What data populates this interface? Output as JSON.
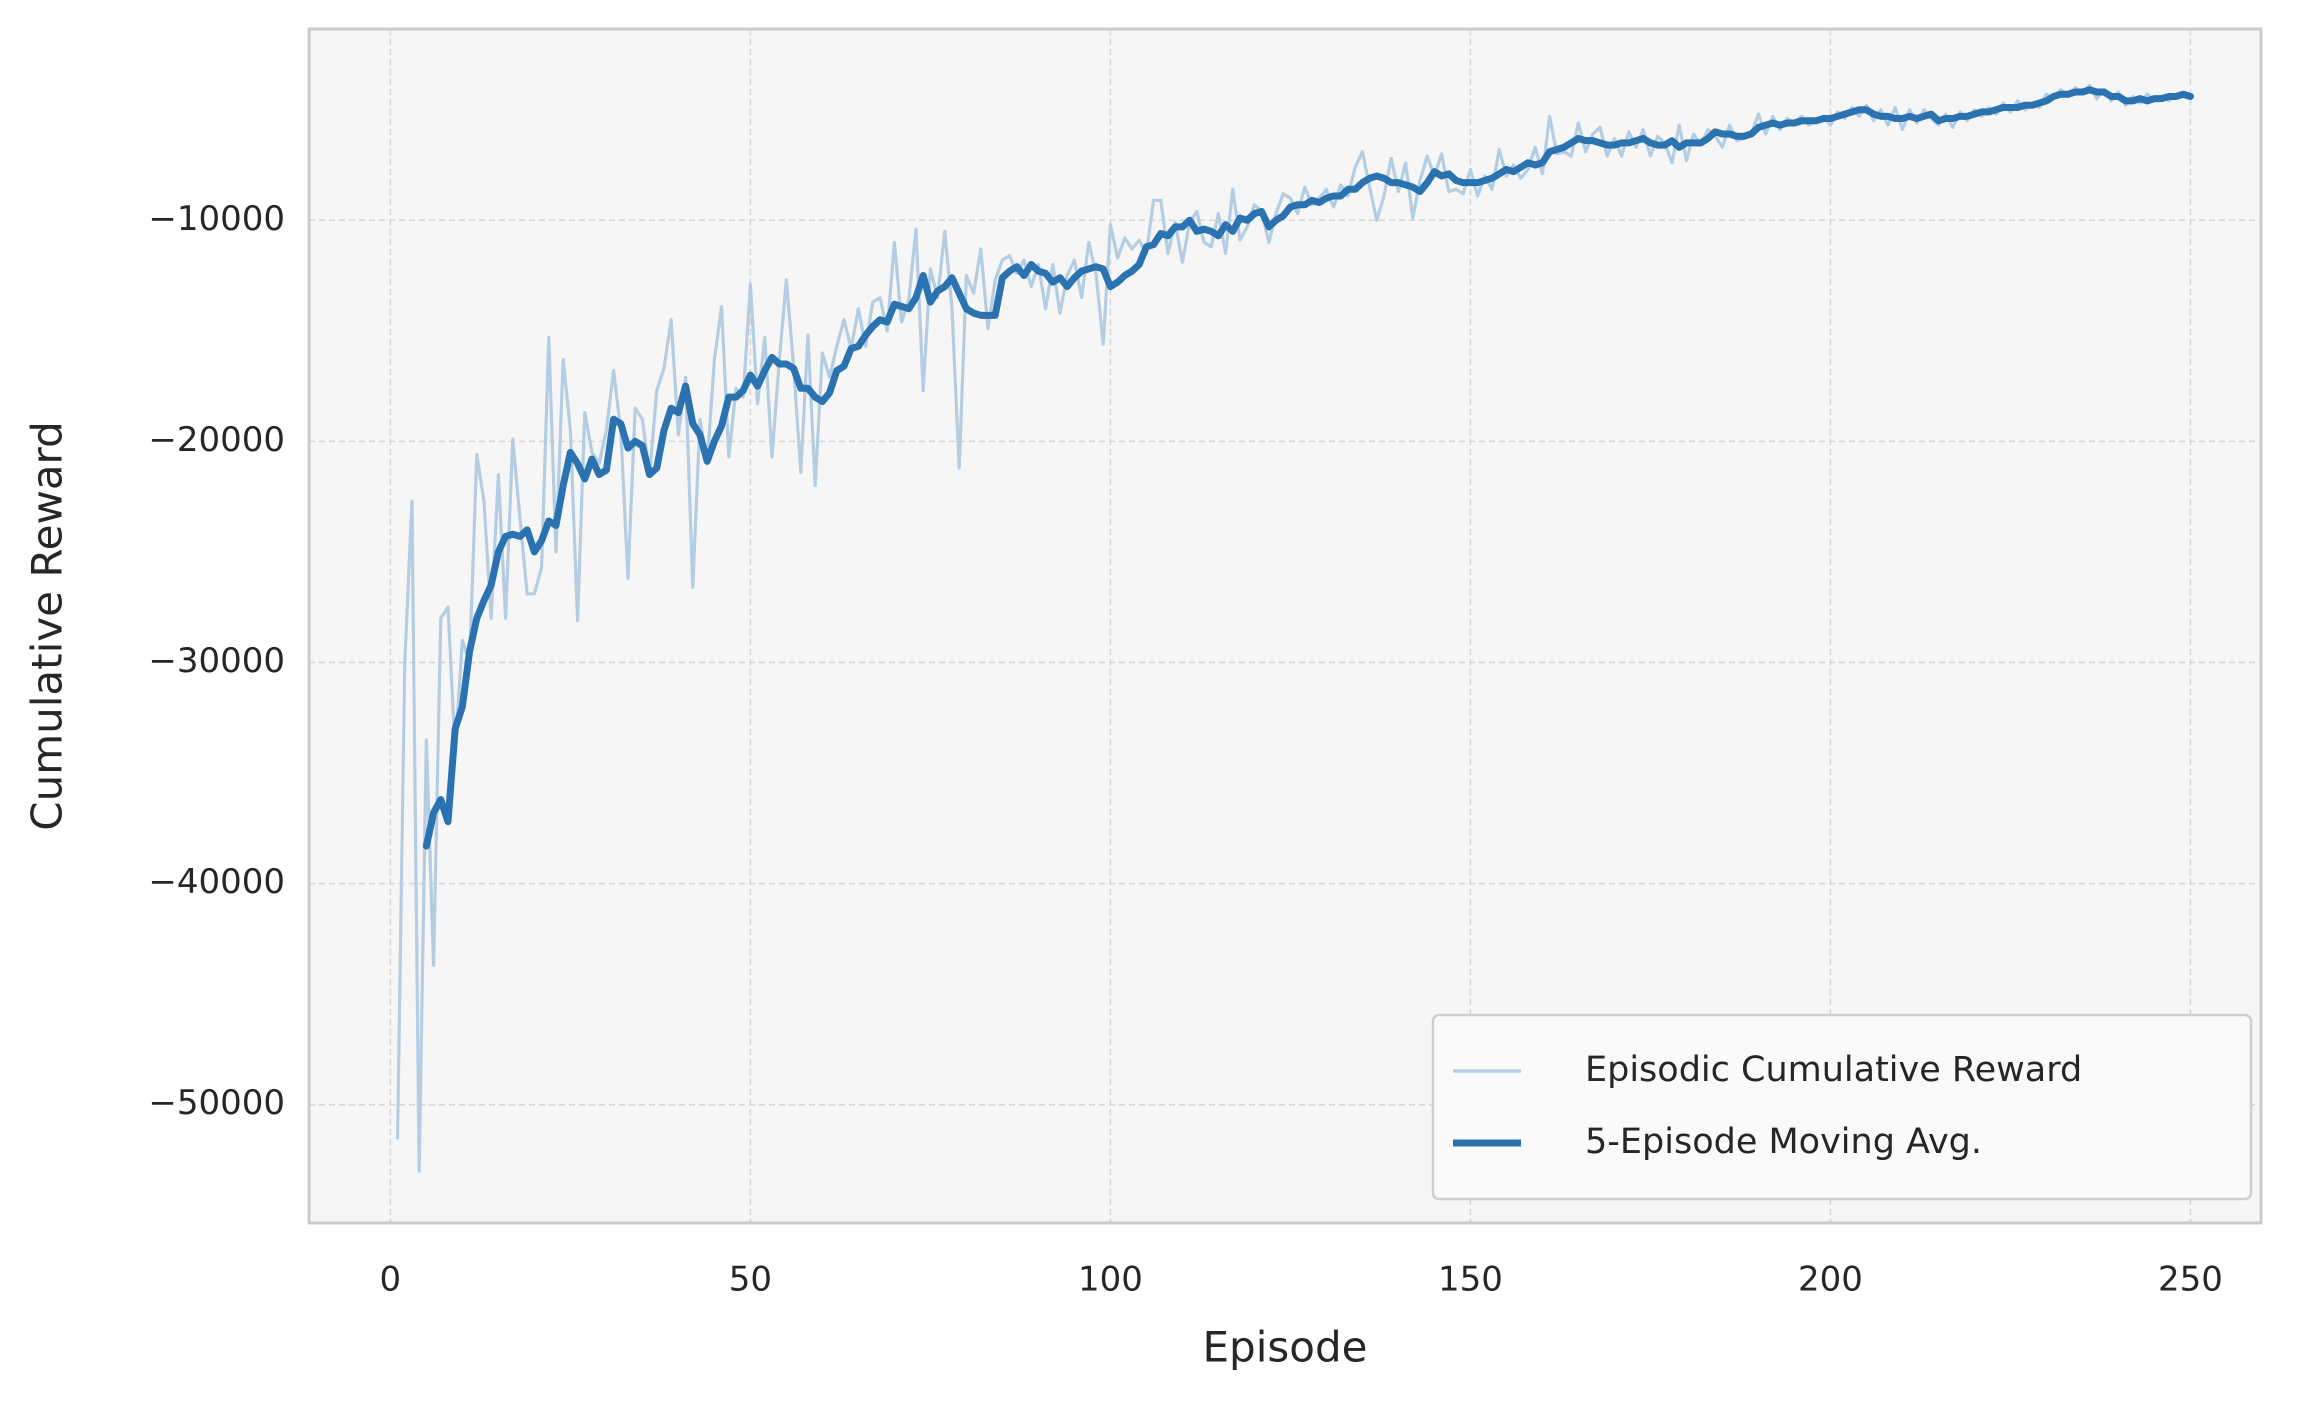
{
  "chart_data": {
    "type": "line",
    "xlabel": "Episode",
    "ylabel": "Cumulative Reward",
    "xlim": [
      -11.3,
      259.8
    ],
    "ylim": [
      -55350,
      -1350
    ],
    "xticks": [
      0,
      50,
      100,
      150,
      200,
      250
    ],
    "yticks": [
      {
        "value": -50000,
        "label": "−50000"
      },
      {
        "value": -40000,
        "label": "−40000"
      },
      {
        "value": -30000,
        "label": "−30000"
      },
      {
        "value": -20000,
        "label": "−20000"
      },
      {
        "value": -10000,
        "label": "−10000"
      }
    ],
    "grid": true,
    "legend": "lower right",
    "x": [
      1,
      2,
      3,
      4,
      5,
      6,
      7,
      8,
      9,
      10,
      11,
      12,
      13,
      14,
      15,
      16,
      17,
      18,
      19,
      20,
      21,
      22,
      23,
      24,
      25,
      26,
      27,
      28,
      29,
      30,
      31,
      32,
      33,
      34,
      35,
      36,
      37,
      38,
      39,
      40,
      41,
      42,
      43,
      44,
      45,
      46,
      47,
      48,
      49,
      50,
      51,
      52,
      53,
      54,
      55,
      56,
      57,
      58,
      59,
      60,
      61,
      62,
      63,
      64,
      65,
      66,
      67,
      68,
      69,
      70,
      71,
      72,
      73,
      74,
      75,
      76,
      77,
      78,
      79,
      80,
      81,
      82,
      83,
      84,
      85,
      86,
      87,
      88,
      89,
      90,
      91,
      92,
      93,
      94,
      95,
      96,
      97,
      98,
      99,
      100,
      101,
      102,
      103,
      104,
      105,
      106,
      107,
      108,
      109,
      110,
      111,
      112,
      113,
      114,
      115,
      116,
      117,
      118,
      119,
      120,
      121,
      122,
      123,
      124,
      125,
      126,
      127,
      128,
      129,
      130,
      131,
      132,
      133,
      134,
      135,
      136,
      137,
      138,
      139,
      140,
      141,
      142,
      143,
      144,
      145,
      146,
      147,
      148,
      149,
      150,
      151,
      152,
      153,
      154,
      155,
      156,
      157,
      158,
      159,
      160,
      161,
      162,
      163,
      164,
      165,
      166,
      167,
      168,
      169,
      170,
      171,
      172,
      173,
      174,
      175,
      176,
      177,
      178,
      179,
      180,
      181,
      182,
      183,
      184,
      185,
      186,
      187,
      188,
      189,
      190,
      191,
      192,
      193,
      194,
      195,
      196,
      197,
      198,
      199,
      200,
      201,
      202,
      203,
      204,
      205,
      206,
      207,
      208,
      209,
      210,
      211,
      212,
      213,
      214,
      215,
      216,
      217,
      218,
      219,
      220,
      221,
      222,
      223,
      224,
      225,
      226,
      227,
      228,
      229,
      230,
      231,
      232,
      233,
      234,
      235,
      236,
      237,
      238,
      239,
      240,
      241,
      242,
      243,
      244,
      245,
      246,
      247,
      248,
      249,
      250
    ],
    "series": [
      {
        "name": "Episodic Cumulative Reward",
        "color": "#b4cde2",
        "width": 3.2,
        "values": [
          -51500,
          -30000,
          -22700,
          -53000,
          -33500,
          -43700,
          -28000,
          -27500,
          -34000,
          -29000,
          -30000,
          -20600,
          -22700,
          -28000,
          -21500,
          -28000,
          -19900,
          -23500,
          -26900,
          -26900,
          -25700,
          -15300,
          -25000,
          -16300,
          -19500,
          -28100,
          -18700,
          -20500,
          -21000,
          -19500,
          -16800,
          -19500,
          -26200,
          -18500,
          -19000,
          -21500,
          -17700,
          -16700,
          -14500,
          -19700,
          -17100,
          -26600,
          -19000,
          -21000,
          -16300,
          -13900,
          -20700,
          -17600,
          -18000,
          -12900,
          -18300,
          -15300,
          -20700,
          -16400,
          -12700,
          -16600,
          -21400,
          -15200,
          -22000,
          -16000,
          -17100,
          -15700,
          -14500,
          -15800,
          -14000,
          -15700,
          -13700,
          -13500,
          -15000,
          -11000,
          -14600,
          -13600,
          -10400,
          -17700,
          -12200,
          -13500,
          -10500,
          -14000,
          -21200,
          -12500,
          -13300,
          -11300,
          -14900,
          -12700,
          -11800,
          -11600,
          -12400,
          -11800,
          -13000,
          -12000,
          -14000,
          -12000,
          -14200,
          -12500,
          -11800,
          -13500,
          -11000,
          -12400,
          -15600,
          -10200,
          -11700,
          -10800,
          -11300,
          -10900,
          -11500,
          -9100,
          -9100,
          -11500,
          -10100,
          -11900,
          -10100,
          -9600,
          -11000,
          -11200,
          -9700,
          -11500,
          -8600,
          -10900,
          -10300,
          -9300,
          -9600,
          -11000,
          -9700,
          -8800,
          -9000,
          -9700,
          -8500,
          -9300,
          -9000,
          -8600,
          -9400,
          -8400,
          -8900,
          -7600,
          -6900,
          -8500,
          -10000,
          -8900,
          -7200,
          -8700,
          -7400,
          -9900,
          -8200,
          -7100,
          -8000,
          -7000,
          -8700,
          -8600,
          -8800,
          -7700,
          -8900,
          -8000,
          -8600,
          -6800,
          -8000,
          -7500,
          -8100,
          -7700,
          -6700,
          -7900,
          -5300,
          -7000,
          -6900,
          -7100,
          -5600,
          -6900,
          -6100,
          -5800,
          -7100,
          -6300,
          -7100,
          -6000,
          -6700,
          -5900,
          -7100,
          -6200,
          -6500,
          -7400,
          -5700,
          -7300,
          -6100,
          -6600,
          -5900,
          -6200,
          -6700,
          -5700,
          -6400,
          -6300,
          -6100,
          -5200,
          -6100,
          -5300,
          -5900,
          -5400,
          -5600,
          -5300,
          -5700,
          -5500,
          -5300,
          -5700,
          -5100,
          -5400,
          -4900,
          -5300,
          -4800,
          -5500,
          -5000,
          -5700,
          -4900,
          -5900,
          -5000,
          -5600,
          -5000,
          -5400,
          -5700,
          -5200,
          -5800,
          -5100,
          -5500,
          -5000,
          -5300,
          -4900,
          -5200,
          -4700,
          -5100,
          -4600,
          -5000,
          -4700,
          -4900,
          -4300,
          -4500,
          -4100,
          -4400,
          -4000,
          -4300,
          -3900,
          -4500,
          -4100,
          -4600,
          -4200,
          -4800,
          -4400,
          -4700,
          -4300,
          -4600,
          -4400,
          -4600,
          -4300,
          -4400,
          -4500
        ]
      },
      {
        "name": "5-Episode Moving Avg.",
        "color": "#2a72b0",
        "width": 7,
        "values": [
          null,
          null,
          null,
          null,
          -38300,
          -36800,
          -36200,
          -37200,
          -33000,
          -32000,
          -29500,
          -28000,
          -27200,
          -26500,
          -25000,
          -24300,
          -24200,
          -24300,
          -24000,
          -25000,
          -24500,
          -23600,
          -23800,
          -22000,
          -20500,
          -21000,
          -21700,
          -20800,
          -21500,
          -21300,
          -19000,
          -19200,
          -20300,
          -20000,
          -20200,
          -21500,
          -21200,
          -19500,
          -18500,
          -18700,
          -17500,
          -19200,
          -19700,
          -20900,
          -20000,
          -19300,
          -18000,
          -18000,
          -17700,
          -17000,
          -17500,
          -16800,
          -16200,
          -16500,
          -16500,
          -16700,
          -17600,
          -17600,
          -18000,
          -18200,
          -17800,
          -16800,
          -16600,
          -15800,
          -15700,
          -15200,
          -14800,
          -14500,
          -14600,
          -13800,
          -13900,
          -14000,
          -13500,
          -12500,
          -13700,
          -13200,
          -13000,
          -12600,
          -13300,
          -14000,
          -14200,
          -14300,
          -14300,
          -14300,
          -12600,
          -12300,
          -12100,
          -12500,
          -12000,
          -12300,
          -12400,
          -12800,
          -12600,
          -13000,
          -12600,
          -12300,
          -12200,
          -12100,
          -12200,
          -13000,
          -12800,
          -12500,
          -12300,
          -12000,
          -11200,
          -11100,
          -10600,
          -10700,
          -10300,
          -10300,
          -10000,
          -10500,
          -10400,
          -10500,
          -10700,
          -10200,
          -10500,
          -9900,
          -10000,
          -9700,
          -9600,
          -10300,
          -10000,
          -9800,
          -9400,
          -9300,
          -9300,
          -9100,
          -9200,
          -9000,
          -8900,
          -8900,
          -8600,
          -8600,
          -8300,
          -8100,
          -8000,
          -8100,
          -8300,
          -8300,
          -8400,
          -8500,
          -8700,
          -8300,
          -7800,
          -8000,
          -7900,
          -8200,
          -8300,
          -8300,
          -8300,
          -8200,
          -8100,
          -7900,
          -7700,
          -7800,
          -7600,
          -7400,
          -7500,
          -7400,
          -6900,
          -6800,
          -6700,
          -6500,
          -6300,
          -6400,
          -6400,
          -6500,
          -6600,
          -6600,
          -6500,
          -6500,
          -6400,
          -6300,
          -6500,
          -6600,
          -6600,
          -6400,
          -6700,
          -6500,
          -6500,
          -6500,
          -6300,
          -6000,
          -6100,
          -6100,
          -6200,
          -6200,
          -6100,
          -5800,
          -5700,
          -5600,
          -5700,
          -5600,
          -5600,
          -5500,
          -5500,
          -5500,
          -5400,
          -5400,
          -5300,
          -5200,
          -5100,
          -5000,
          -5000,
          -5200,
          -5300,
          -5300,
          -5400,
          -5400,
          -5300,
          -5400,
          -5300,
          -5200,
          -5500,
          -5400,
          -5400,
          -5300,
          -5300,
          -5200,
          -5100,
          -5100,
          -5000,
          -4900,
          -4900,
          -4900,
          -4800,
          -4800,
          -4700,
          -4600,
          -4400,
          -4300,
          -4300,
          -4200,
          -4200,
          -4100,
          -4200,
          -4200,
          -4400,
          -4400,
          -4600,
          -4600,
          -4500,
          -4600,
          -4500,
          -4500,
          -4400,
          -4400,
          -4300,
          -4400
        ]
      }
    ]
  }
}
